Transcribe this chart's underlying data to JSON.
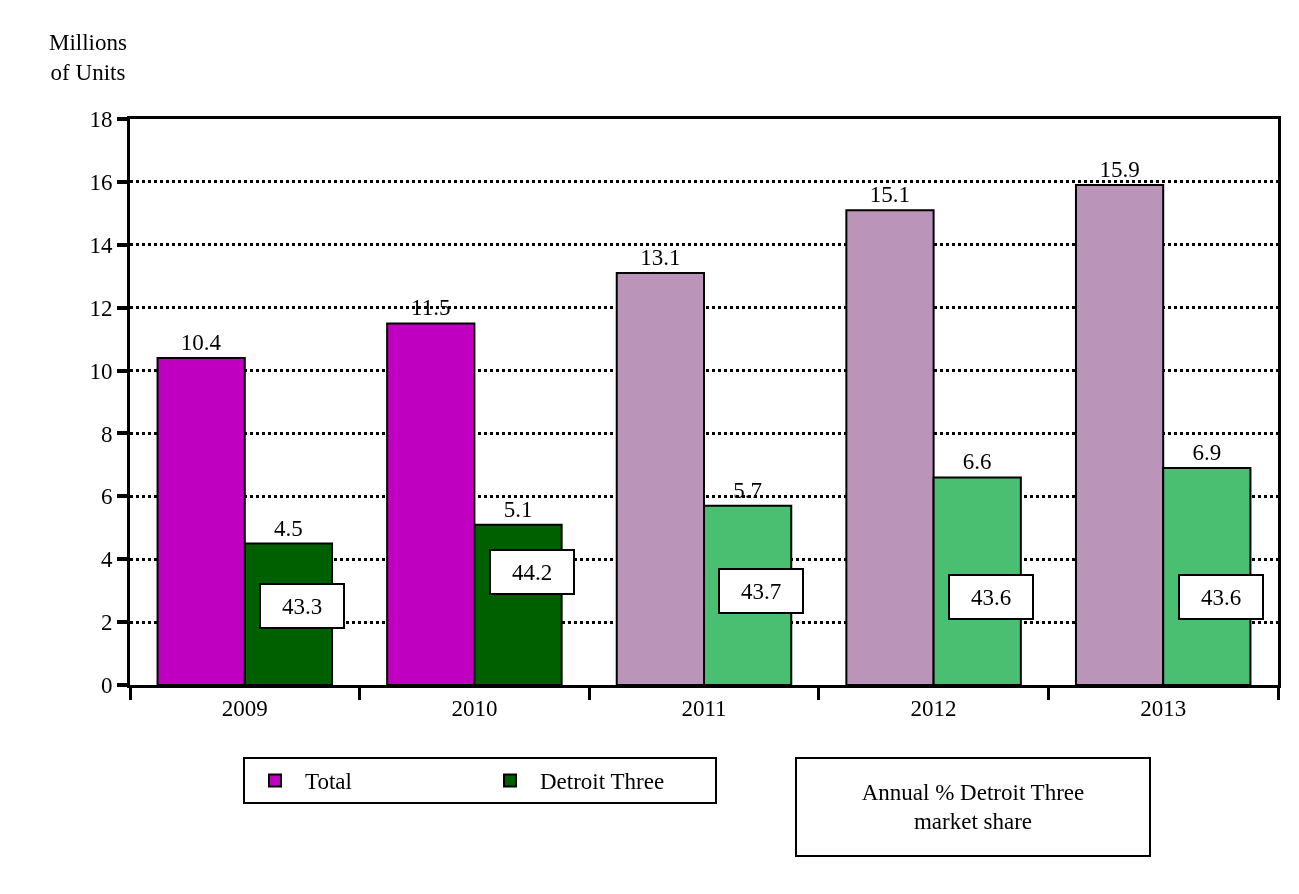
{
  "chart_data": {
    "type": "bar",
    "ylabel": "Millions of Units",
    "categories": [
      "2009",
      "2010",
      "2011",
      "2012",
      "2013"
    ],
    "series": [
      {
        "name": "Total",
        "colors": [
          "#c000c0",
          "#c000c0",
          "#bb94b9",
          "#bb94b9",
          "#bb94b9"
        ],
        "values": [
          10.4,
          11.5,
          13.1,
          15.1,
          15.9
        ]
      },
      {
        "name": "Detroit Three",
        "colors": [
          "#006000",
          "#006000",
          "#4abf72",
          "#4abf72",
          "#4abf72"
        ],
        "values": [
          4.5,
          5.1,
          5.7,
          6.6,
          6.9
        ]
      }
    ],
    "ylim": [
      0,
      18
    ],
    "yticks": [
      0,
      2,
      4,
      6,
      8,
      10,
      12,
      14,
      16,
      18
    ],
    "grid": "y",
    "data_labels": true,
    "legend": "bottom",
    "annotations": [
      {
        "text": "43.3",
        "x": "2009",
        "y": 2.5
      },
      {
        "text": "44.2",
        "x": "2010",
        "y": 3.6
      },
      {
        "text": "43.7",
        "x": "2011",
        "y": 3.0
      },
      {
        "text": "43.6",
        "x": "2012",
        "y": 2.8
      },
      {
        "text": "43.6",
        "x": "2013",
        "y": 2.8
      },
      "Annual % Detroit Three market share"
    ]
  }
}
